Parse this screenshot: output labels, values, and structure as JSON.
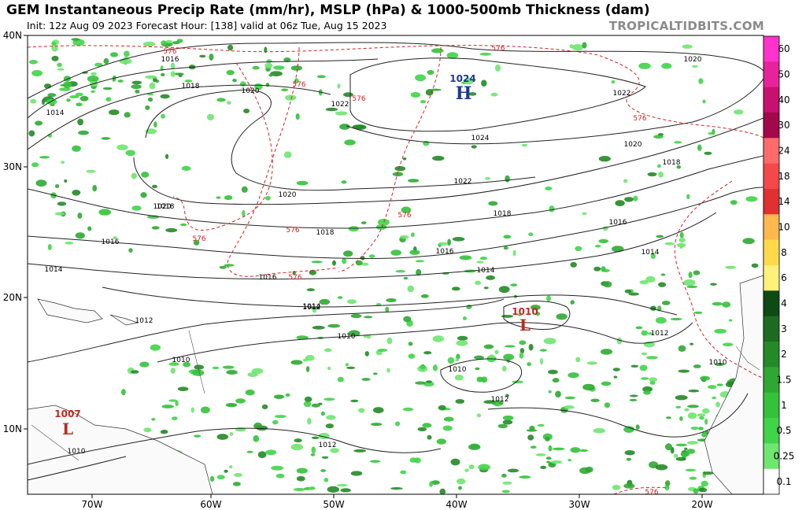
{
  "header": {
    "title": "GEM Instantaneous Precip Rate (mm/hr), MSLP (hPa) & 1000-500mb Thickness (dam)",
    "subtitle": "Init: 12z Aug 09 2023   Forecast Hour: [138]   valid at 06z Tue, Aug 15 2023",
    "brand": "TROPICALTIDBITS.COM"
  },
  "map": {
    "lat_labels": [
      "40N",
      "30N",
      "20N",
      "10N"
    ],
    "lon_labels": [
      "70W",
      "60W",
      "50W",
      "40W",
      "30W",
      "20W"
    ],
    "isobar_labels": [
      "1016",
      "1018",
      "1020",
      "1022",
      "1020",
      "1014",
      "1018",
      "1016",
      "1014",
      "1024",
      "1022",
      "1020",
      "1018",
      "1016",
      "1014",
      "1014",
      "1012",
      "1012",
      "1010",
      "1010",
      "1010",
      "1012",
      "1012",
      "1010",
      "1020",
      "1022",
      "1018",
      "1020",
      "1016",
      "1014",
      "1012",
      "1010",
      "1018",
      "1016"
    ],
    "thickness_labels": [
      "576",
      "576",
      "576",
      "576",
      "576",
      "576",
      "576",
      "576",
      "576",
      "576"
    ],
    "centers": [
      {
        "type": "H",
        "pressure": "1024",
        "color": "#1f3a93"
      },
      {
        "type": "L",
        "pressure": "1010",
        "color": "#c0281e"
      },
      {
        "type": "L",
        "pressure": "1007",
        "color": "#c0281e"
      }
    ]
  },
  "colorbar": {
    "labels": [
      "60",
      "50",
      "40",
      "30",
      "24",
      "18",
      "14",
      "10",
      "8",
      "6",
      "4",
      "3",
      "2",
      "1.5",
      "1",
      "0.5",
      "0.25",
      "0.1"
    ],
    "colors": [
      "#ff33cc",
      "#e8229b",
      "#c8106e",
      "#a3084a",
      "#ff6a6a",
      "#f54848",
      "#e03030",
      "#ffb84d",
      "#ffd94a",
      "#fff07a",
      "#0d4a14",
      "#1c6b1f",
      "#248a27",
      "#2ea832",
      "#33c23a",
      "#40d448",
      "#6ee66f",
      "#ffffff"
    ]
  }
}
